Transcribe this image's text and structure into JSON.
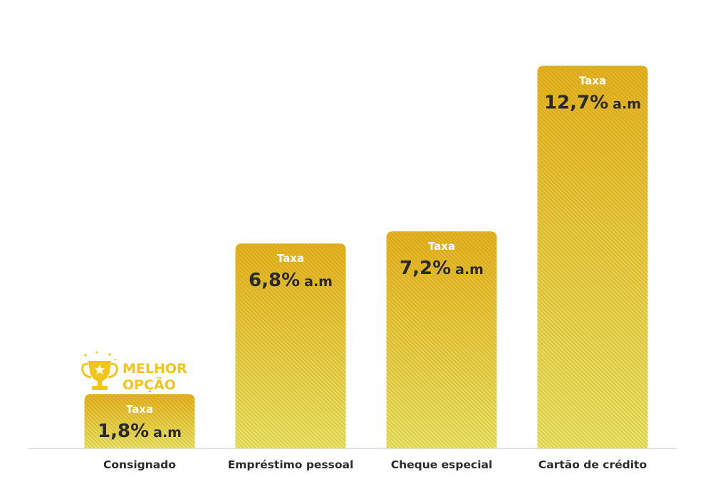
{
  "chart_data": {
    "type": "bar",
    "categories": [
      "Consignado",
      "Empréstimo pessoal",
      "Cheque especial",
      "Cartão de crédito"
    ],
    "values": [
      1.8,
      6.8,
      7.2,
      12.7
    ],
    "value_prefix_label": "Taxa",
    "value_labels": [
      "1,8%",
      "6,8%",
      "7,2%",
      "12,7%"
    ],
    "value_unit": "a.m",
    "ylim": [
      0,
      13.7
    ],
    "grid": false,
    "legend": "none",
    "highlight": {
      "category_index": 0,
      "badge_line1": "MELHOR",
      "badge_line2": "OPÇÃO",
      "icon": "trophy-icon"
    },
    "colors": {
      "bar_top": "#e4b21f",
      "bar_bottom": "#e8e568",
      "stripe": "#b88a10",
      "label": "#ffffff",
      "value": "#2a2a2a",
      "category": "#2b2b2b",
      "badge": "#f2c51e",
      "baseline": "#d9d9d9"
    }
  }
}
